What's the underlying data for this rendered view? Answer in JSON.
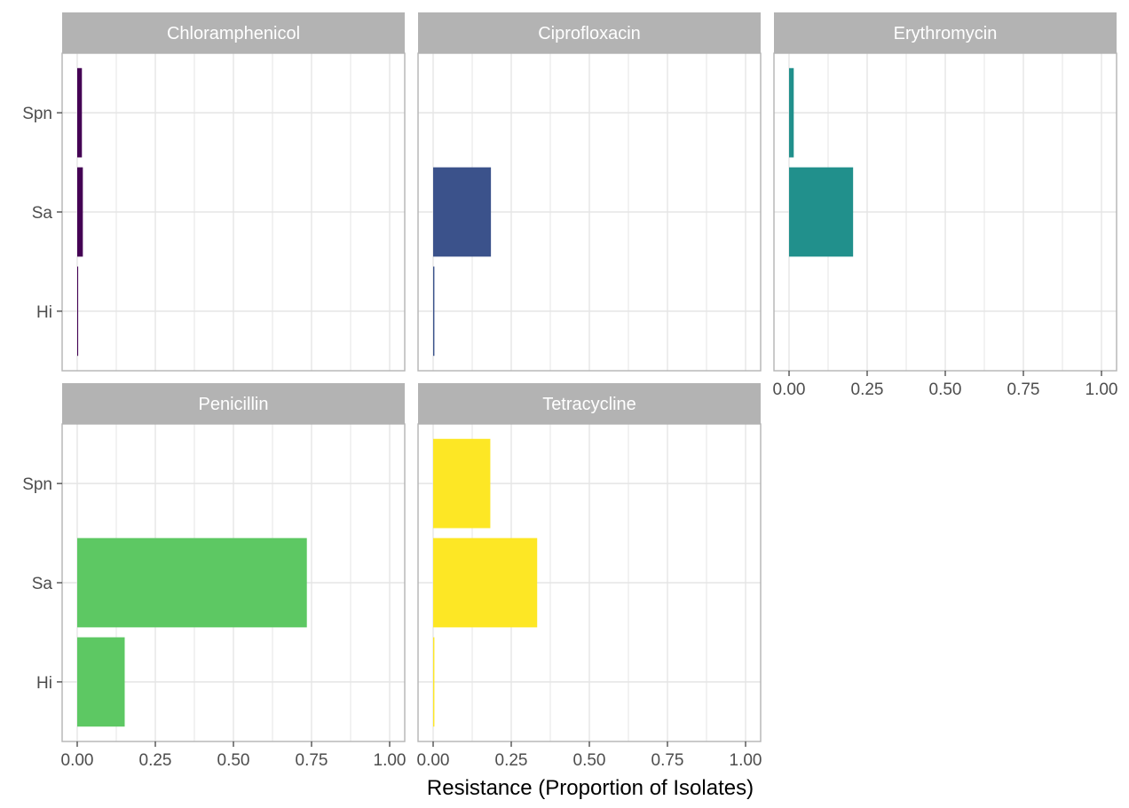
{
  "chart_data": {
    "type": "bar",
    "orientation": "horizontal",
    "xlabel": "Resistance (Proportion of Isolates)",
    "ylabel": "",
    "xlim": [
      0,
      1
    ],
    "x_ticks": [
      "0.00",
      "0.25",
      "0.50",
      "0.75",
      "1.00"
    ],
    "categories": [
      "Spn",
      "Sa",
      "Hi"
    ],
    "grid": true,
    "facet_layout": "3 columns, 2 rows, shared axes",
    "colors": {
      "Chloramphenicol": "#440154",
      "Ciprofloxacin": "#3B528B",
      "Erythromycin": "#21908C",
      "Penicillin": "#5DC863",
      "Tetracycline": "#FDE725",
      "strip_background": "#B3B3B3",
      "strip_text": "#FFFFFF",
      "panel_border": "#B3B3B3",
      "grid": "#E5E5E5",
      "axis_text": "#4D4D4D"
    },
    "facets": [
      {
        "name": "Chloramphenicol",
        "values": {
          "Spn": 0.015,
          "Sa": 0.018,
          "Hi": 0.003
        }
      },
      {
        "name": "Ciprofloxacin",
        "values": {
          "Spn": 0.0,
          "Sa": 0.185,
          "Hi": 0.004
        }
      },
      {
        "name": "Erythromycin",
        "values": {
          "Spn": 0.015,
          "Sa": 0.205,
          "Hi": 0.0
        }
      },
      {
        "name": "Penicillin",
        "values": {
          "Spn": 0.0,
          "Sa": 0.735,
          "Hi": 0.152
        }
      },
      {
        "name": "Tetracycline",
        "values": {
          "Spn": 0.183,
          "Sa": 0.333,
          "Hi": 0.004
        }
      }
    ]
  }
}
